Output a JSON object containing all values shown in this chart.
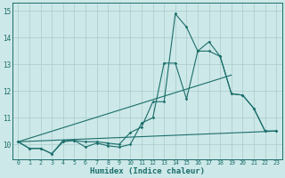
{
  "xlabel": "Humidex (Indice chaleur)",
  "ylabel": "",
  "xlim": [
    -0.5,
    23.5
  ],
  "ylim": [
    9.45,
    15.3
  ],
  "yticks": [
    10,
    11,
    12,
    13,
    14,
    15
  ],
  "xticks": [
    0,
    1,
    2,
    3,
    4,
    5,
    6,
    7,
    8,
    9,
    10,
    11,
    12,
    13,
    14,
    15,
    16,
    17,
    18,
    19,
    20,
    21,
    22,
    23
  ],
  "bg_color": "#cde8e8",
  "grid_color": "#aed0d0",
  "line_color": "#1a6e6a",
  "line1_x": [
    0,
    1,
    2,
    3,
    4,
    5,
    6,
    7,
    8,
    9,
    10,
    11,
    12,
    13,
    14,
    15,
    16,
    17,
    18,
    19,
    20,
    21,
    22,
    23
  ],
  "line1_y": [
    10.1,
    9.85,
    9.85,
    9.65,
    10.15,
    10.15,
    10.1,
    10.1,
    10.05,
    10.0,
    10.45,
    10.65,
    11.6,
    11.6,
    14.9,
    14.4,
    13.5,
    13.85,
    13.3,
    11.9,
    11.85,
    11.35,
    10.5,
    10.5
  ],
  "line2_x": [
    0,
    1,
    2,
    3,
    4,
    5,
    6,
    7,
    8,
    9,
    10,
    11,
    12,
    13,
    14,
    15,
    16,
    17,
    18,
    19,
    20,
    21,
    22,
    23
  ],
  "line2_y": [
    10.1,
    9.85,
    9.85,
    9.65,
    10.1,
    10.15,
    9.9,
    10.05,
    9.95,
    9.9,
    10.0,
    10.8,
    11.0,
    13.05,
    13.05,
    11.7,
    13.5,
    13.5,
    13.3,
    11.9,
    11.85,
    11.35,
    10.5,
    10.5
  ],
  "line3_x": [
    0,
    23
  ],
  "line3_y": [
    10.1,
    10.5
  ],
  "line4_x": [
    0,
    19
  ],
  "line4_y": [
    10.1,
    12.6
  ]
}
